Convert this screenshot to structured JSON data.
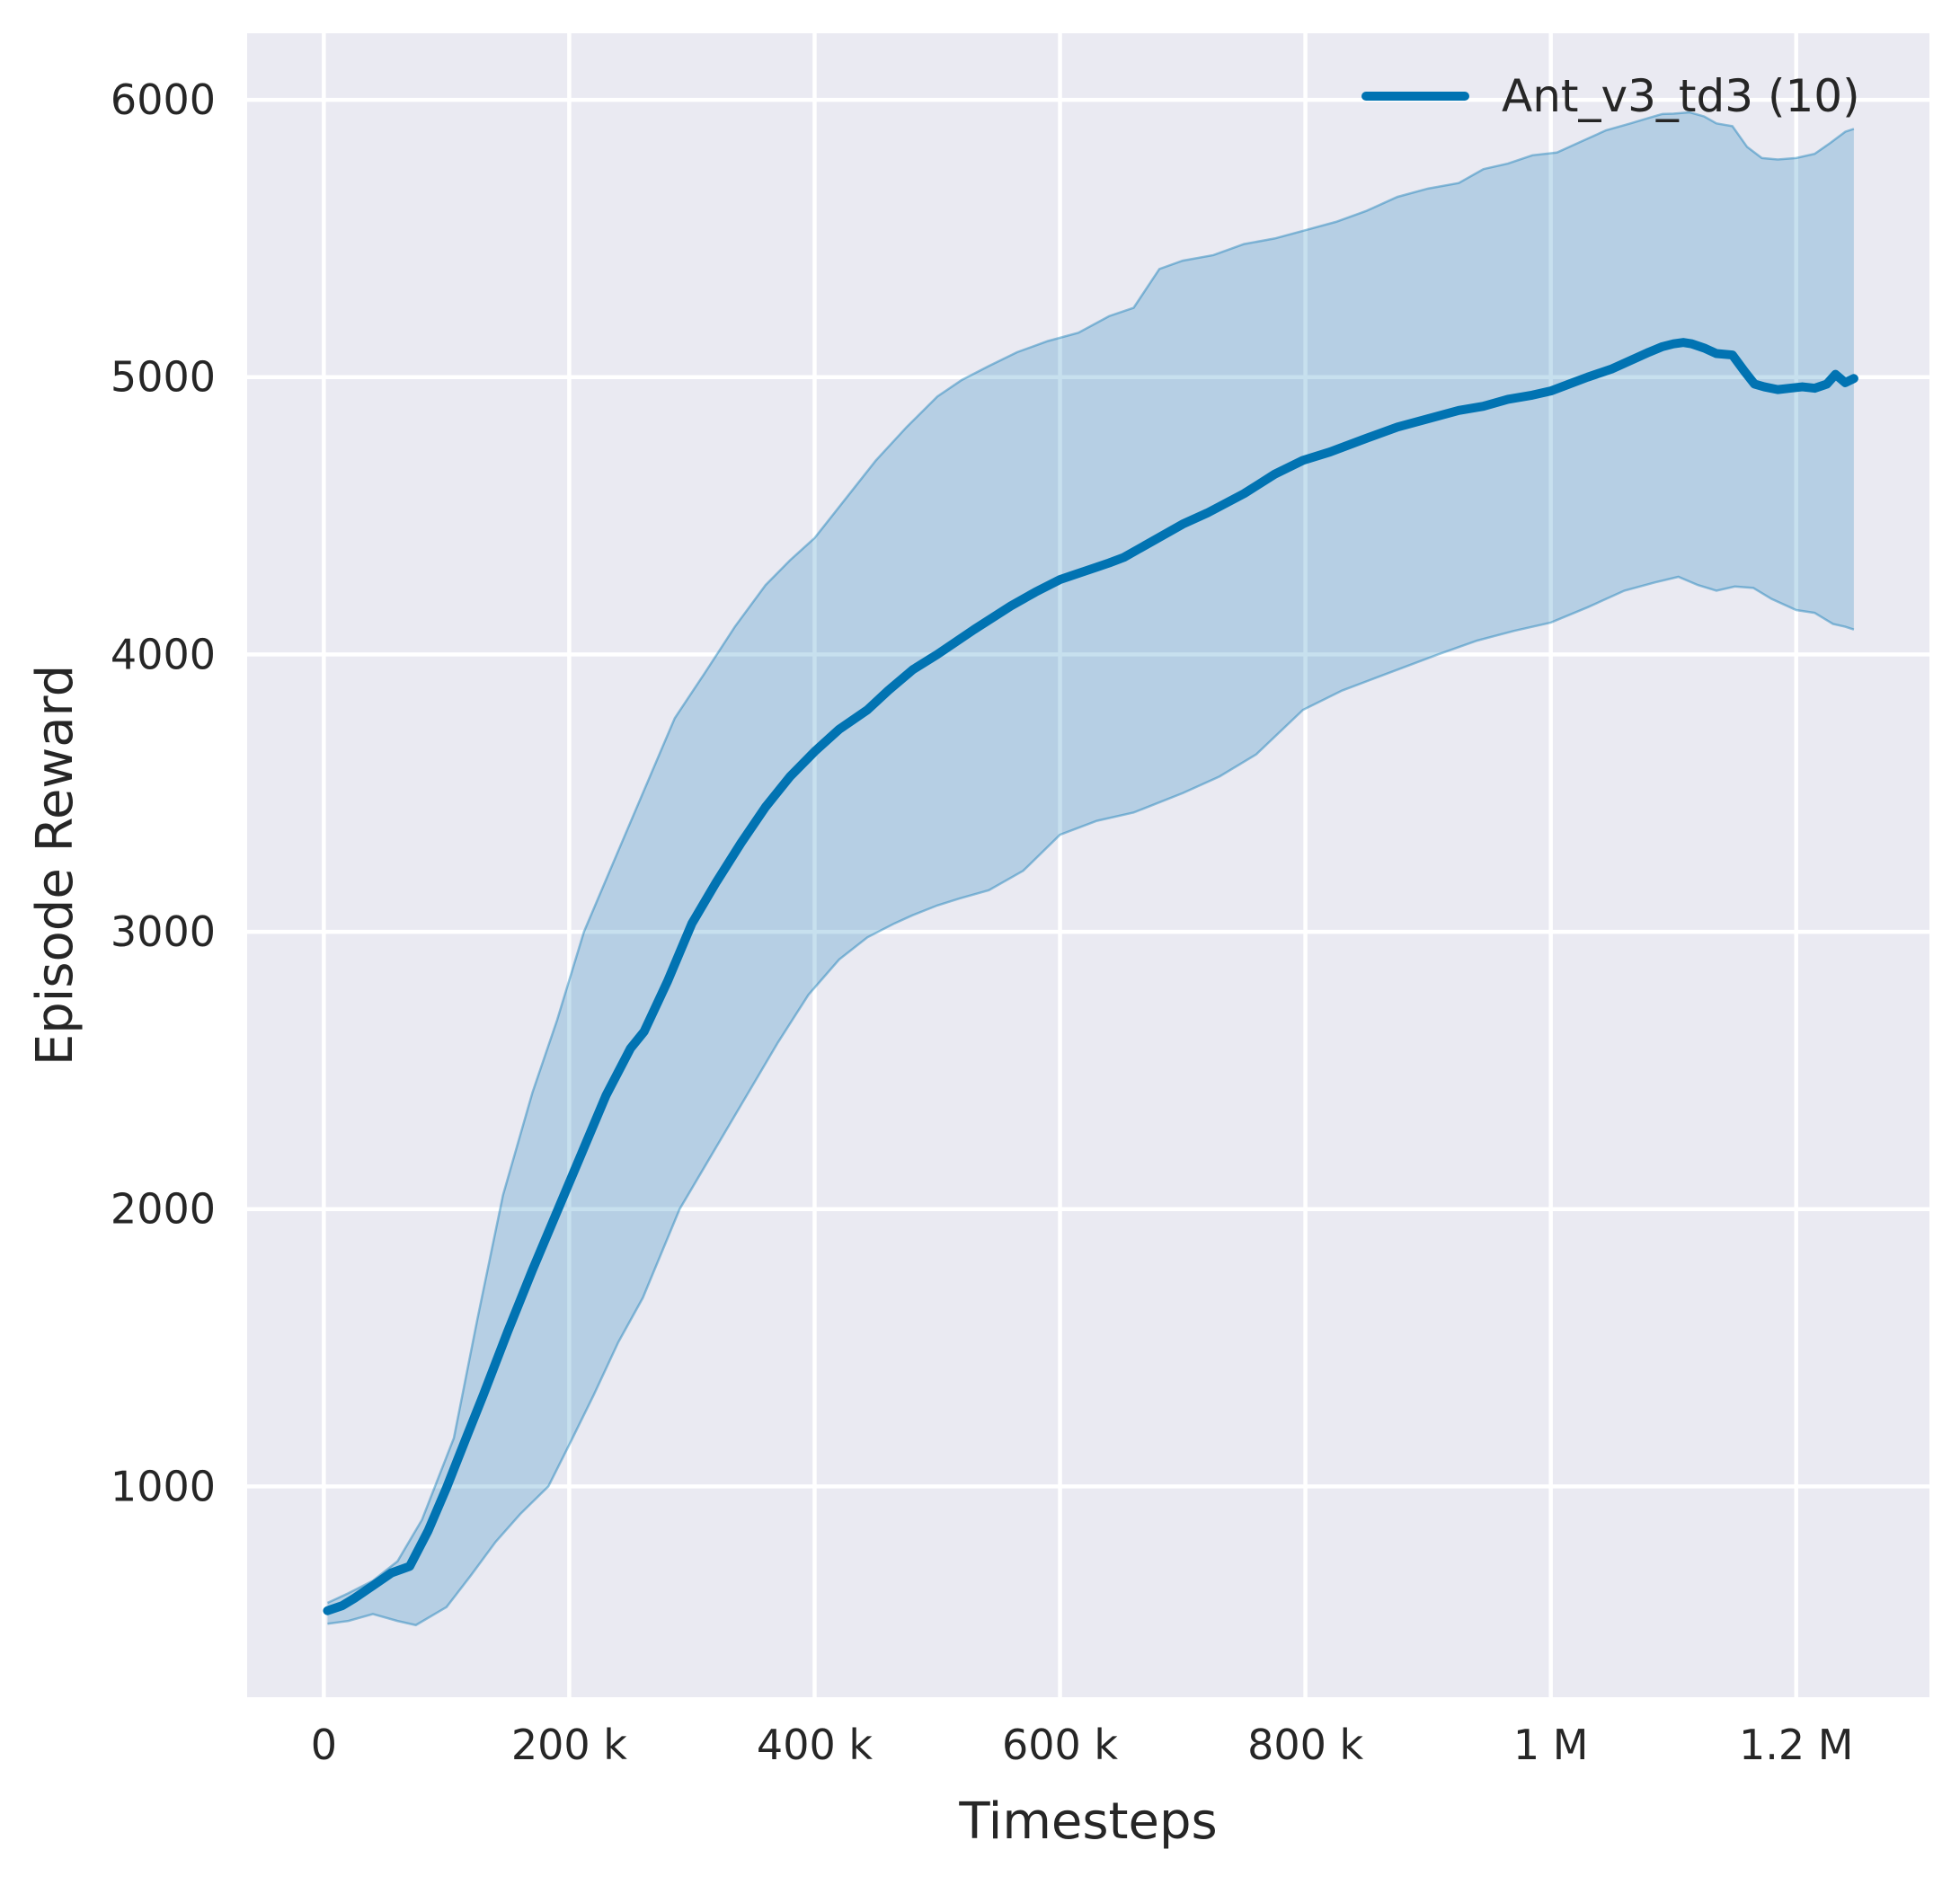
{
  "figure": {
    "background": "#ffffff"
  },
  "axes": {
    "background": "#eaeaf2",
    "grid_color": "#ffffff",
    "text_color": "#262626"
  },
  "legend": {
    "label": "Ant_v3_td3 (10)",
    "color": "#0173b2"
  },
  "chart_data": {
    "type": "line",
    "title": "",
    "xlabel": "Timesteps",
    "ylabel": "Episode Reward",
    "grid": true,
    "legend_position": "upper right",
    "xlim": [
      -62500,
      1308600
    ],
    "ylim": [
      240,
      6240
    ],
    "x_ticks": [
      {
        "value": 0,
        "label": "0"
      },
      {
        "value": 200000,
        "label": "200 k"
      },
      {
        "value": 400000,
        "label": "400 k"
      },
      {
        "value": 600000,
        "label": "600 k"
      },
      {
        "value": 800000,
        "label": "800 k"
      },
      {
        "value": 1000000,
        "label": "1 M"
      },
      {
        "value": 1200000,
        "label": "1.2 M"
      }
    ],
    "y_ticks": [
      {
        "value": 1000,
        "label": "1000"
      },
      {
        "value": 2000,
        "label": "2000"
      },
      {
        "value": 3000,
        "label": "3000"
      },
      {
        "value": 4000,
        "label": "4000"
      },
      {
        "value": 5000,
        "label": "5000"
      },
      {
        "value": 6000,
        "label": "6000"
      }
    ],
    "series": [
      {
        "name": "Ant_v3_td3 (10)",
        "color": "#0173b2",
        "band_fill": "rgba(1,115,178,0.22)",
        "band_edge": "rgba(1,115,178,0.40)",
        "x": [
          3000,
          15000,
          25000,
          40000,
          55000,
          70000,
          85000,
          100000,
          116000,
          130000,
          150000,
          170000,
          190000,
          210000,
          230000,
          250000,
          261000,
          280000,
          300000,
          320000,
          340000,
          360000,
          380000,
          400000,
          420000,
          443000,
          460000,
          480000,
          500000,
          515000,
          530000,
          560000,
          580000,
          600000,
          620000,
          640000,
          652000,
          670000,
          700000,
          720000,
          750000,
          775000,
          798000,
          820000,
          850000,
          875000,
          900000,
          925000,
          945000,
          965000,
          985000,
          1000000,
          1015000,
          1030000,
          1050000,
          1065000,
          1080000,
          1091000,
          1100000,
          1108000,
          1115000,
          1125000,
          1135000,
          1148000,
          1158000,
          1166000,
          1174000,
          1185000,
          1195000,
          1205000,
          1215000,
          1225000,
          1232000,
          1240000,
          1247000
        ],
        "y": [
          552,
          570,
          597,
          642,
          688,
          712,
          840,
          995,
          1175,
          1330,
          1560,
          1780,
          1990,
          2200,
          2410,
          2580,
          2640,
          2820,
          3030,
          3180,
          3320,
          3450,
          3560,
          3650,
          3730,
          3800,
          3870,
          3945,
          4000,
          4045,
          4090,
          4175,
          4225,
          4270,
          4300,
          4330,
          4350,
          4395,
          4470,
          4510,
          4580,
          4650,
          4700,
          4730,
          4780,
          4820,
          4850,
          4880,
          4895,
          4920,
          4935,
          4950,
          4975,
          5000,
          5030,
          5060,
          5090,
          5110,
          5120,
          5125,
          5120,
          5105,
          5085,
          5080,
          5020,
          4975,
          4965,
          4955,
          4960,
          4965,
          4960,
          4975,
          5010,
          4980,
          4995
        ],
        "band_upper_x": [
          3000,
          20000,
          40000,
          60000,
          80000,
          106000,
          125000,
          146000,
          170000,
          190000,
          212000,
          235000,
          260000,
          286000,
          310000,
          335000,
          360000,
          380000,
          400000,
          425000,
          450000,
          475000,
          500000,
          520000,
          542000,
          565000,
          590000,
          615000,
          640000,
          660000,
          681000,
          700000,
          725000,
          750000,
          775000,
          800000,
          825000,
          850000,
          875000,
          900000,
          925000,
          945000,
          965000,
          985000,
          1005000,
          1025000,
          1045000,
          1065000,
          1080000,
          1091000,
          1100000,
          1113000,
          1125000,
          1135000,
          1148000,
          1160000,
          1172000,
          1185000,
          1200000,
          1215000,
          1228000,
          1240000,
          1247000
        ],
        "band_upper_y": [
          580,
          615,
          660,
          730,
          880,
          1175,
          1600,
          2050,
          2420,
          2680,
          3000,
          3240,
          3500,
          3770,
          3930,
          4100,
          4250,
          4340,
          4420,
          4560,
          4700,
          4820,
          4930,
          4990,
          5040,
          5090,
          5130,
          5160,
          5220,
          5250,
          5390,
          5420,
          5440,
          5480,
          5500,
          5530,
          5560,
          5600,
          5650,
          5680,
          5700,
          5750,
          5770,
          5800,
          5810,
          5850,
          5890,
          5915,
          5935,
          5949,
          5950,
          5955,
          5940,
          5915,
          5905,
          5830,
          5790,
          5785,
          5790,
          5805,
          5845,
          5885,
          5895
        ],
        "band_lower_x": [
          3000,
          20000,
          40000,
          60000,
          75000,
          100000,
          120000,
          140000,
          160000,
          183000,
          200000,
          220000,
          240000,
          260000,
          290000,
          310000,
          330000,
          350000,
          370000,
          395000,
          420000,
          443000,
          465000,
          480000,
          500000,
          518000,
          542000,
          570000,
          600000,
          630000,
          660000,
          700000,
          730000,
          760000,
          798000,
          830000,
          860000,
          908000,
          940000,
          970000,
          1000000,
          1030000,
          1060000,
          1085000,
          1104000,
          1120000,
          1135000,
          1150000,
          1165000,
          1180000,
          1200000,
          1215000,
          1230000,
          1240000,
          1247000
        ],
        "band_lower_y": [
          505,
          515,
          540,
          515,
          500,
          565,
          680,
          800,
          900,
          1000,
          1150,
          1330,
          1520,
          1680,
          2000,
          2150,
          2300,
          2450,
          2600,
          2773,
          2900,
          2980,
          3030,
          3060,
          3095,
          3120,
          3150,
          3220,
          3350,
          3400,
          3430,
          3500,
          3560,
          3640,
          3800,
          3870,
          3920,
          4000,
          4050,
          4085,
          4115,
          4170,
          4230,
          4260,
          4280,
          4250,
          4230,
          4245,
          4240,
          4200,
          4160,
          4150,
          4110,
          4100,
          4090
        ]
      }
    ]
  }
}
